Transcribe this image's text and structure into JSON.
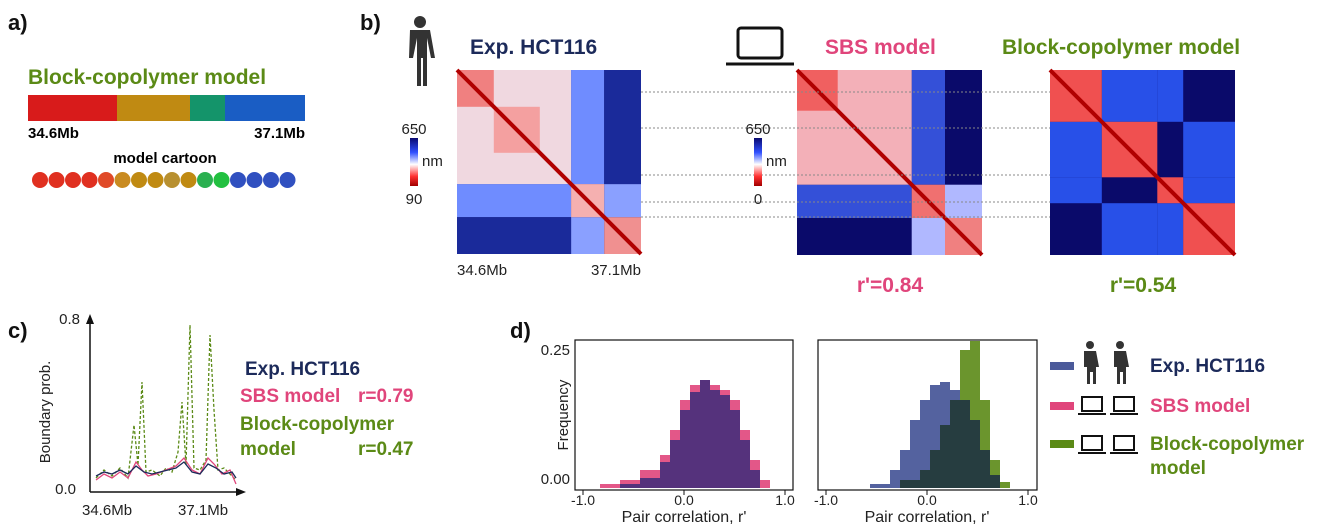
{
  "panel_labels": {
    "a": "a)",
    "b": "b)",
    "c": "c)",
    "d": "d)"
  },
  "panel_a": {
    "title": "Block-copolymer model",
    "start": "34.6Mb",
    "end": "37.1Mb",
    "cartoon_label": "model cartoon"
  },
  "panel_b": {
    "maps": [
      {
        "title": "Exp. HCT116",
        "colorbar": {
          "top": "650",
          "unit": "nm",
          "bottom": "90"
        },
        "x_start": "34.6Mb",
        "x_end": "37.1Mb"
      },
      {
        "title": "SBS model",
        "colorbar": {
          "top": "650",
          "unit": "nm",
          "bottom": "0"
        },
        "score": "r'=0.84"
      },
      {
        "title": "Block-copolymer model",
        "score": "r'=0.54"
      }
    ]
  },
  "panel_c": {
    "y_label": "Boundary prob.",
    "y_top": "0.8",
    "y_bottom": "0.0",
    "x_start": "34.6Mb",
    "x_end": "37.1Mb",
    "legend": {
      "exp": "Exp. HCT116",
      "sbs": "SBS model",
      "sbs_r": "r=0.79",
      "bcp_line1": "Block-copolymer",
      "bcp_line2": "model",
      "bcp_r": "r=0.47"
    }
  },
  "panel_d": {
    "y_label": "Frequency",
    "y_top": "0.25",
    "y_bottom": "0.00",
    "x_ticks": [
      "-1.0",
      "0.0",
      "1.0"
    ],
    "x_label": "Pair correlation, r'",
    "legend": {
      "exp": "Exp. HCT116",
      "sbs": "SBS model",
      "bcp_line1": "Block-copolymer",
      "bcp_line2": "model"
    }
  }
}
